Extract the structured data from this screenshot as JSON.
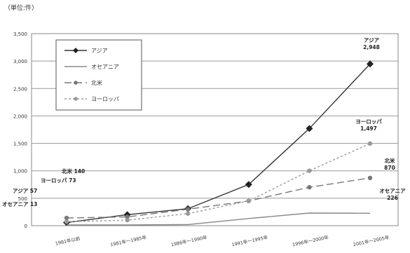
{
  "unit_label": "（単位:件）",
  "chart_data": {
    "type": "line",
    "title": "",
    "xlabel": "",
    "ylabel": "",
    "categories": [
      "1981年以前",
      "1981年〜1985年",
      "1986年〜1990年",
      "1991年〜1995年",
      "1996年〜2000年",
      "2001年〜2005年"
    ],
    "ylim": [
      0,
      3500
    ],
    "yticks": [
      0,
      500,
      1000,
      1500,
      2000,
      2500,
      3000,
      3500
    ],
    "ytick_labels": [
      "0",
      "500",
      "1,000",
      "1,500",
      "2,000",
      "2,500",
      "3,000",
      "3,500"
    ],
    "grid": true,
    "legend_position": "top-left",
    "series": [
      {
        "name": "アジア",
        "values": [
          57,
          200,
          310,
          750,
          1770,
          2948
        ],
        "color": "#333333",
        "dash": "",
        "marker": "diamond",
        "start_label": "アジア 57",
        "end_label": [
          "アジア",
          "2,948"
        ]
      },
      {
        "name": "オセアニア",
        "values": [
          13,
          14,
          20,
          130,
          230,
          226
        ],
        "color": "#888888",
        "dash": "",
        "marker": "none",
        "start_label": "オセアニア 13",
        "end_label": [
          "オセアニア",
          "226"
        ]
      },
      {
        "name": "北米",
        "values": [
          140,
          160,
          300,
          450,
          700,
          870
        ],
        "color": "#777777",
        "dash": "10,5",
        "marker": "dot",
        "start_label": "北米 140",
        "end_label": [
          "北米",
          "870"
        ]
      },
      {
        "name": "ヨーロッパ",
        "values": [
          73,
          100,
          220,
          450,
          1000,
          1497
        ],
        "color": "#999999",
        "dash": "3,3",
        "marker": "dot",
        "start_label": "ヨーロッパ 73",
        "end_label": [
          "ヨーロッパ",
          "1,497"
        ]
      }
    ]
  }
}
